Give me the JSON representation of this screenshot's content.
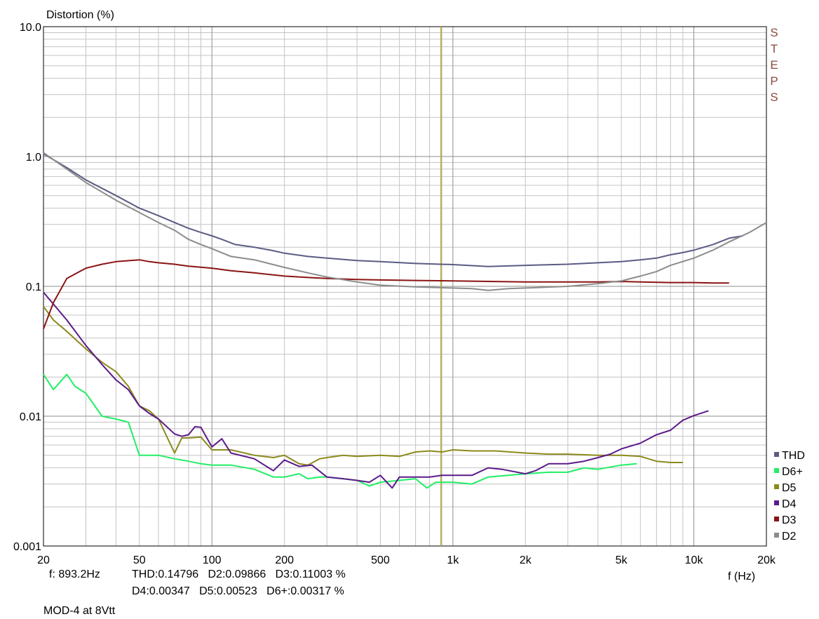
{
  "chart_data": {
    "type": "line",
    "title": "",
    "ylabel": "Distortion (%)",
    "xlabel": "f (Hz)",
    "x_scale": "log",
    "y_scale": "log",
    "xlim": [
      20,
      20000
    ],
    "ylim": [
      0.001,
      10
    ],
    "grid": true,
    "x_ticks": [
      {
        "value": 20,
        "label": "20"
      },
      {
        "value": 50,
        "label": "50"
      },
      {
        "value": 100,
        "label": "100"
      },
      {
        "value": 200,
        "label": "200"
      },
      {
        "value": 500,
        "label": "500"
      },
      {
        "value": 1000,
        "label": "1k"
      },
      {
        "value": 2000,
        "label": "2k"
      },
      {
        "value": 5000,
        "label": "5k"
      },
      {
        "value": 10000,
        "label": "10k"
      },
      {
        "value": 20000,
        "label": "20k"
      }
    ],
    "y_ticks": [
      {
        "value": 10,
        "label": "10.0"
      },
      {
        "value": 1,
        "label": "1.0"
      },
      {
        "value": 0.1,
        "label": "0.1"
      },
      {
        "value": 0.01,
        "label": "0.01"
      },
      {
        "value": 0.001,
        "label": "0.001"
      }
    ],
    "cursor": {
      "x": 893.2,
      "color": "#b8ae50"
    },
    "side_label": "STEPS",
    "side_label_color": "#8b4a3e",
    "legend_position": "bottom-right",
    "series": [
      {
        "name": "THD",
        "color": "#5b5b84",
        "points": [
          [
            20,
            1.05
          ],
          [
            25,
            0.82
          ],
          [
            30,
            0.66
          ],
          [
            40,
            0.5
          ],
          [
            50,
            0.4
          ],
          [
            60,
            0.35
          ],
          [
            70,
            0.31
          ],
          [
            80,
            0.28
          ],
          [
            90,
            0.26
          ],
          [
            100,
            0.245
          ],
          [
            110,
            0.23
          ],
          [
            125,
            0.21
          ],
          [
            150,
            0.2
          ],
          [
            175,
            0.19
          ],
          [
            200,
            0.18
          ],
          [
            250,
            0.17
          ],
          [
            300,
            0.165
          ],
          [
            400,
            0.158
          ],
          [
            500,
            0.155
          ],
          [
            700,
            0.15
          ],
          [
            1000,
            0.147
          ],
          [
            1400,
            0.142
          ],
          [
            2000,
            0.145
          ],
          [
            3000,
            0.148
          ],
          [
            4000,
            0.152
          ],
          [
            5000,
            0.155
          ],
          [
            6000,
            0.16
          ],
          [
            7000,
            0.165
          ],
          [
            8000,
            0.175
          ],
          [
            9000,
            0.182
          ],
          [
            10000,
            0.19
          ],
          [
            12000,
            0.21
          ],
          [
            14000,
            0.235
          ],
          [
            16000,
            0.245
          ]
        ]
      },
      {
        "name": "D6+",
        "color": "#22ee66",
        "points": [
          [
            20,
            0.021
          ],
          [
            22,
            0.016
          ],
          [
            25,
            0.021
          ],
          [
            27,
            0.017
          ],
          [
            30,
            0.015
          ],
          [
            35,
            0.01
          ],
          [
            40,
            0.0095
          ],
          [
            45,
            0.009
          ],
          [
            50,
            0.005
          ],
          [
            55,
            0.005
          ],
          [
            60,
            0.005
          ],
          [
            70,
            0.0047
          ],
          [
            80,
            0.0045
          ],
          [
            90,
            0.0043
          ],
          [
            100,
            0.0042
          ],
          [
            120,
            0.0042
          ],
          [
            150,
            0.0039
          ],
          [
            180,
            0.0034
          ],
          [
            200,
            0.0034
          ],
          [
            230,
            0.0036
          ],
          [
            250,
            0.0033
          ],
          [
            280,
            0.0034
          ],
          [
            300,
            0.0034
          ],
          [
            350,
            0.0033
          ],
          [
            400,
            0.0032
          ],
          [
            450,
            0.0029
          ],
          [
            500,
            0.0031
          ],
          [
            600,
            0.0032
          ],
          [
            700,
            0.0033
          ],
          [
            780,
            0.0028
          ],
          [
            850,
            0.0031
          ],
          [
            900,
            0.0031
          ],
          [
            1000,
            0.0031
          ],
          [
            1200,
            0.003
          ],
          [
            1400,
            0.0034
          ],
          [
            1700,
            0.0035
          ],
          [
            2000,
            0.0036
          ],
          [
            2500,
            0.0037
          ],
          [
            3000,
            0.0037
          ],
          [
            3500,
            0.004
          ],
          [
            4000,
            0.0039
          ],
          [
            5000,
            0.0042
          ],
          [
            5800,
            0.0043
          ]
        ]
      },
      {
        "name": "D5",
        "color": "#8b8a1c",
        "points": [
          [
            20,
            0.07
          ],
          [
            22,
            0.055
          ],
          [
            25,
            0.045
          ],
          [
            30,
            0.033
          ],
          [
            35,
            0.026
          ],
          [
            40,
            0.022
          ],
          [
            45,
            0.017
          ],
          [
            50,
            0.012
          ],
          [
            55,
            0.011
          ],
          [
            60,
            0.0095
          ],
          [
            70,
            0.0052
          ],
          [
            75,
            0.0068
          ],
          [
            80,
            0.0068
          ],
          [
            90,
            0.0069
          ],
          [
            100,
            0.0055
          ],
          [
            120,
            0.0055
          ],
          [
            150,
            0.005
          ],
          [
            180,
            0.0048
          ],
          [
            200,
            0.005
          ],
          [
            230,
            0.0043
          ],
          [
            250,
            0.0042
          ],
          [
            280,
            0.0047
          ],
          [
            300,
            0.0048
          ],
          [
            350,
            0.005
          ],
          [
            400,
            0.0049
          ],
          [
            500,
            0.005
          ],
          [
            600,
            0.0049
          ],
          [
            700,
            0.0053
          ],
          [
            800,
            0.0054
          ],
          [
            900,
            0.0053
          ],
          [
            1000,
            0.0055
          ],
          [
            1200,
            0.0054
          ],
          [
            1500,
            0.0054
          ],
          [
            2000,
            0.0052
          ],
          [
            2500,
            0.0051
          ],
          [
            3000,
            0.0051
          ],
          [
            4000,
            0.005
          ],
          [
            5000,
            0.005
          ],
          [
            6000,
            0.0049
          ],
          [
            7000,
            0.0045
          ],
          [
            8000,
            0.0044
          ],
          [
            9000,
            0.0044
          ]
        ]
      },
      {
        "name": "D4",
        "color": "#5c1a8a",
        "points": [
          [
            20,
            0.09
          ],
          [
            25,
            0.055
          ],
          [
            30,
            0.035
          ],
          [
            35,
            0.025
          ],
          [
            40,
            0.019
          ],
          [
            45,
            0.016
          ],
          [
            50,
            0.012
          ],
          [
            55,
            0.0105
          ],
          [
            60,
            0.0095
          ],
          [
            70,
            0.0073
          ],
          [
            75,
            0.007
          ],
          [
            80,
            0.0072
          ],
          [
            85,
            0.0083
          ],
          [
            90,
            0.0082
          ],
          [
            100,
            0.0058
          ],
          [
            110,
            0.0067
          ],
          [
            120,
            0.0052
          ],
          [
            150,
            0.0047
          ],
          [
            180,
            0.0038
          ],
          [
            200,
            0.0046
          ],
          [
            230,
            0.0041
          ],
          [
            260,
            0.0042
          ],
          [
            300,
            0.0034
          ],
          [
            350,
            0.0033
          ],
          [
            400,
            0.0032
          ],
          [
            450,
            0.0031
          ],
          [
            500,
            0.0035
          ],
          [
            560,
            0.0028
          ],
          [
            600,
            0.0034
          ],
          [
            700,
            0.0034
          ],
          [
            800,
            0.0034
          ],
          [
            900,
            0.0035
          ],
          [
            1000,
            0.0035
          ],
          [
            1200,
            0.0035
          ],
          [
            1400,
            0.004
          ],
          [
            1600,
            0.0039
          ],
          [
            2000,
            0.0036
          ],
          [
            2200,
            0.0038
          ],
          [
            2500,
            0.0043
          ],
          [
            3000,
            0.0043
          ],
          [
            3500,
            0.0045
          ],
          [
            4000,
            0.0048
          ],
          [
            4500,
            0.0051
          ],
          [
            5000,
            0.0056
          ],
          [
            6000,
            0.0062
          ],
          [
            7000,
            0.0072
          ],
          [
            8000,
            0.0078
          ],
          [
            9000,
            0.0093
          ],
          [
            10000,
            0.0101
          ],
          [
            11500,
            0.011
          ]
        ]
      },
      {
        "name": "D3",
        "color": "#8b1414",
        "points": [
          [
            20,
            0.047
          ],
          [
            22,
            0.075
          ],
          [
            25,
            0.115
          ],
          [
            30,
            0.138
          ],
          [
            35,
            0.148
          ],
          [
            40,
            0.155
          ],
          [
            50,
            0.16
          ],
          [
            55,
            0.155
          ],
          [
            60,
            0.152
          ],
          [
            70,
            0.148
          ],
          [
            80,
            0.143
          ],
          [
            100,
            0.138
          ],
          [
            120,
            0.132
          ],
          [
            150,
            0.127
          ],
          [
            200,
            0.12
          ],
          [
            250,
            0.117
          ],
          [
            300,
            0.115
          ],
          [
            400,
            0.113
          ],
          [
            500,
            0.112
          ],
          [
            700,
            0.111
          ],
          [
            1000,
            0.11
          ],
          [
            1500,
            0.109
          ],
          [
            2000,
            0.108
          ],
          [
            3000,
            0.108
          ],
          [
            4000,
            0.108
          ],
          [
            5000,
            0.109
          ],
          [
            6000,
            0.108
          ],
          [
            8000,
            0.107
          ],
          [
            10000,
            0.107
          ],
          [
            12000,
            0.106
          ],
          [
            14000,
            0.106
          ]
        ]
      },
      {
        "name": "D2",
        "color": "#8c8c8c",
        "points": [
          [
            20,
            1.07
          ],
          [
            25,
            0.8
          ],
          [
            30,
            0.63
          ],
          [
            40,
            0.46
          ],
          [
            50,
            0.37
          ],
          [
            60,
            0.31
          ],
          [
            70,
            0.27
          ],
          [
            80,
            0.23
          ],
          [
            90,
            0.21
          ],
          [
            100,
            0.195
          ],
          [
            120,
            0.17
          ],
          [
            150,
            0.16
          ],
          [
            200,
            0.14
          ],
          [
            250,
            0.127
          ],
          [
            300,
            0.118
          ],
          [
            400,
            0.108
          ],
          [
            500,
            0.102
          ],
          [
            700,
            0.099
          ],
          [
            1000,
            0.097
          ],
          [
            1200,
            0.096
          ],
          [
            1400,
            0.093
          ],
          [
            1700,
            0.096
          ],
          [
            2000,
            0.097
          ],
          [
            3000,
            0.1
          ],
          [
            4000,
            0.105
          ],
          [
            5000,
            0.11
          ],
          [
            6000,
            0.12
          ],
          [
            7000,
            0.13
          ],
          [
            8000,
            0.145
          ],
          [
            10000,
            0.165
          ],
          [
            12000,
            0.19
          ],
          [
            14000,
            0.22
          ],
          [
            17000,
            0.26
          ],
          [
            20000,
            0.31
          ]
        ]
      }
    ]
  },
  "readouts": {
    "freq": "f: 893.2Hz",
    "line1": "THD:0.14796   D2:0.09866   D3:0.11003 %",
    "line2": "D4:0.00347   D5:0.00523   D6+:0.00317 %",
    "caption": "MOD-4 at 8Vtt"
  }
}
